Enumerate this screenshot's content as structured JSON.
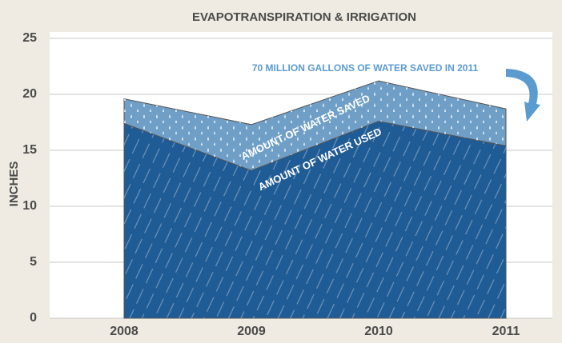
{
  "chart_data": {
    "type": "stacked-area",
    "title": "EVAPOTRANSPIRATION & IRRIGATION",
    "y_label": "INCHES",
    "annotation": "70 MILLION GALLONS OF WATER SAVED IN 2011",
    "categories": [
      "2008",
      "2009",
      "2010",
      "2011"
    ],
    "series": [
      {
        "name": "AMOUNT OF WATER USED",
        "color": "#1f5b95",
        "values": [
          17.4,
          13.2,
          17.6,
          15.4
        ]
      },
      {
        "name": "AMOUNT OF WATER SAVED",
        "color": "#6f9fc7",
        "values": [
          2.2,
          4.1,
          3.6,
          3.3
        ]
      }
    ],
    "ylim": [
      0,
      25
    ],
    "yticks": [
      0,
      5,
      10,
      15,
      20,
      25
    ],
    "grid": true
  }
}
